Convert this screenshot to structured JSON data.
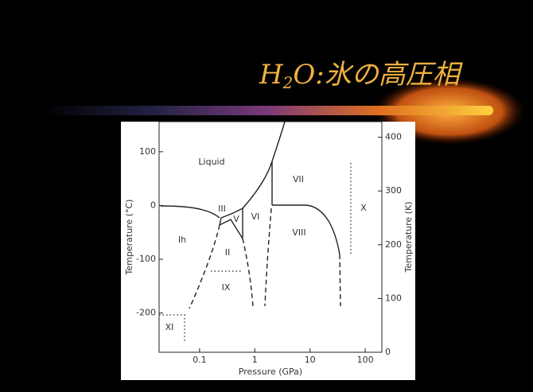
{
  "chart_data": {
    "type": "phase-diagram",
    "title": {
      "main": "H",
      "sub": "2",
      "rest": "O:氷の高圧相"
    },
    "x_label": "Pressure (GPa)",
    "y_label": "Temperature (°C)",
    "y2_label": "Temperature (K)",
    "xscale": "log",
    "xlim": [
      0.0185,
      200
    ],
    "xticks": [
      0.1,
      1,
      10,
      100
    ],
    "ylim": [
      -273,
      156
    ],
    "yticks": [
      -200,
      -100,
      0,
      100
    ],
    "y2lim": [
      0,
      429
    ],
    "y2ticks": [
      0,
      100,
      200,
      300,
      400
    ],
    "phases": [
      "Liquid",
      "III",
      "V",
      "VI",
      "VII",
      "Ih",
      "II",
      "VIII",
      "X",
      "IX",
      "XI"
    ]
  }
}
